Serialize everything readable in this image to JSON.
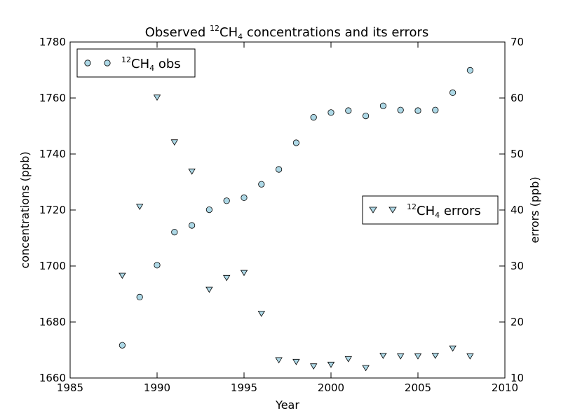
{
  "chart_data": {
    "type": "scatter",
    "title_main": "Observed ",
    "title_sup": "12",
    "title_species": "CH",
    "title_sub": "4",
    "title_tail": " concentrations and its errors",
    "xlabel": "Year",
    "ylabel_left": "concentrations (ppb)",
    "ylabel_right": "errors (ppb)",
    "xlim": [
      1985,
      2010
    ],
    "ylim_left": [
      1660,
      1780
    ],
    "ylim_right": [
      10,
      70
    ],
    "x_ticks": [
      "1985",
      "1990",
      "1995",
      "2000",
      "2005",
      "2010"
    ],
    "y_left_ticks": [
      "1660",
      "1680",
      "1700",
      "1720",
      "1740",
      "1760",
      "1780"
    ],
    "y_right_ticks": [
      "10",
      "20",
      "30",
      "40",
      "50",
      "60",
      "70"
    ],
    "grid": false,
    "marker_color": "#add8e6",
    "series": [
      {
        "name_sup": "12",
        "name_species": "CH",
        "name_sub": "4",
        "name_tail": " obs",
        "marker": "circle",
        "axis": "left",
        "legend_location": "upper left",
        "x": [
          1988,
          1989,
          1990,
          1991,
          1992,
          1993,
          1994,
          1995,
          1996,
          1997,
          1998,
          1999,
          2000,
          2001,
          2002,
          2003,
          2004,
          2005,
          2006,
          2007,
          2008
        ],
        "y": [
          1671.7,
          1688.9,
          1700.3,
          1712.1,
          1714.5,
          1720.1,
          1723.3,
          1724.4,
          1729.2,
          1734.5,
          1744.0,
          1753.1,
          1754.8,
          1755.5,
          1753.6,
          1757.2,
          1755.7,
          1755.5,
          1755.7,
          1761.9,
          1769.9
        ]
      },
      {
        "name_sup": "12",
        "name_species": "CH",
        "name_sub": "4",
        "name_tail": " errors",
        "marker": "triangle-down",
        "axis": "right",
        "legend_location": "center right",
        "x": [
          1988,
          1989,
          1990,
          1991,
          1992,
          1993,
          1994,
          1995,
          1996,
          1997,
          1998,
          1999,
          2000,
          2001,
          2002,
          2003,
          2004,
          2005,
          2006,
          2007,
          2008
        ],
        "y": [
          28.3,
          40.6,
          60.1,
          52.1,
          46.9,
          25.8,
          27.9,
          28.8,
          21.5,
          13.2,
          12.9,
          12.1,
          12.4,
          13.4,
          11.8,
          14.0,
          13.9,
          13.9,
          14.0,
          15.3,
          13.9
        ]
      }
    ]
  }
}
